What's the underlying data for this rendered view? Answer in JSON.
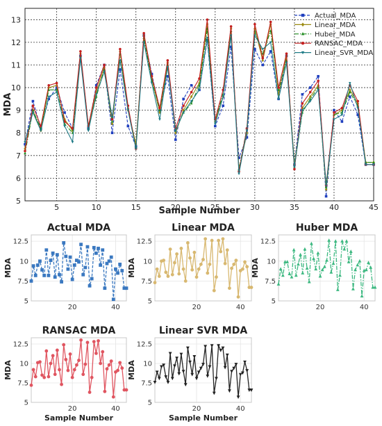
{
  "chart_data": [
    {
      "type": "line",
      "xlabel": "Sample Number",
      "ylabel": "MDA",
      "xlim": [
        1,
        45
      ],
      "ylim": [
        5,
        13.5
      ],
      "xticks": [
        5,
        10,
        15,
        20,
        25,
        30,
        35,
        40,
        45
      ],
      "yticks": [
        5,
        6,
        7,
        8,
        9,
        10,
        11,
        12,
        13
      ],
      "grid": "dashed",
      "legend_position": "top-right",
      "x": [
        1,
        2,
        3,
        4,
        5,
        6,
        7,
        8,
        9,
        10,
        11,
        12,
        13,
        14,
        15,
        16,
        17,
        18,
        19,
        20,
        21,
        22,
        23,
        24,
        25,
        26,
        27,
        28,
        29,
        30,
        31,
        32,
        33,
        34,
        35,
        36,
        37,
        38,
        39,
        40,
        41,
        42,
        43,
        44,
        45
      ],
      "series": [
        {
          "name": "Actual_MDA",
          "color": "#1f3fbf",
          "style": "dashed",
          "marker": "square",
          "values": [
            7.5,
            9.4,
            8.2,
            9.5,
            10.0,
            8.9,
            8.2,
            11.4,
            8.2,
            10.1,
            11.0,
            8.0,
            10.8,
            8.3,
            7.4,
            12.3,
            10.6,
            9.0,
            10.5,
            7.7,
            9.5,
            10.1,
            9.9,
            12.1,
            8.3,
            9.2,
            11.8,
            6.9,
            7.8,
            11.7,
            11.0,
            11.6,
            9.5,
            11.4,
            6.6,
            9.7,
            10.0,
            10.5,
            5.2,
            9.0,
            8.5,
            9.6,
            8.8,
            6.6,
            6.6
          ]
        },
        {
          "name": "Linear_MDA",
          "color": "#9a8a10",
          "style": "solid",
          "marker": "diamond",
          "values": [
            7.3,
            9.0,
            8.1,
            10.0,
            10.1,
            8.6,
            8.1,
            11.5,
            8.3,
            9.8,
            10.9,
            8.4,
            11.6,
            9.0,
            7.5,
            12.3,
            10.4,
            8.9,
            11.1,
            8.0,
            9.0,
            9.6,
            10.2,
            12.8,
            8.5,
            9.6,
            12.6,
            6.3,
            8.0,
            12.6,
            11.2,
            12.8,
            9.7,
            11.4,
            6.6,
            9.1,
            9.6,
            10.1,
            5.5,
            8.8,
            9.0,
            9.9,
            9.3,
            6.7,
            6.7
          ]
        },
        {
          "name": "Huber_MDA",
          "color": "#1d8a1d",
          "style": "dashdot",
          "marker": "triangle",
          "values": [
            7.1,
            9.0,
            8.2,
            9.9,
            9.9,
            8.4,
            8.0,
            11.4,
            8.2,
            9.6,
            10.8,
            8.5,
            11.5,
            9.1,
            7.4,
            12.2,
            10.3,
            9.0,
            11.0,
            8.1,
            8.9,
            9.3,
            10.1,
            12.6,
            8.6,
            9.7,
            12.5,
            6.4,
            8.2,
            12.5,
            11.5,
            12.5,
            9.9,
            11.2,
            6.5,
            8.9,
            9.5,
            10.0,
            5.6,
            8.8,
            8.9,
            9.8,
            9.2,
            6.7,
            6.7
          ]
        },
        {
          "name": "RANSAC_MDA",
          "color": "#c42020",
          "style": "solid",
          "marker": "circle",
          "values": [
            7.2,
            9.2,
            8.3,
            10.1,
            10.2,
            8.5,
            8.2,
            11.6,
            8.3,
            10.0,
            11.0,
            8.6,
            11.7,
            9.2,
            7.3,
            12.4,
            10.5,
            9.1,
            11.2,
            8.2,
            9.2,
            9.8,
            10.4,
            13.0,
            8.6,
            9.9,
            12.7,
            6.3,
            8.2,
            12.8,
            11.3,
            12.9,
            10.0,
            11.5,
            6.4,
            9.3,
            9.8,
            10.3,
            5.7,
            8.9,
            9.1,
            10.1,
            9.4,
            6.6,
            6.6
          ]
        },
        {
          "name": "Linear_SVR_MDA",
          "color": "#1d7a86",
          "style": "solid",
          "marker": "triangle-down",
          "values": [
            7.6,
            8.9,
            8.1,
            9.6,
            9.8,
            8.3,
            7.6,
            11.3,
            8.1,
            9.7,
            10.7,
            8.7,
            11.2,
            9.0,
            7.3,
            12.0,
            10.2,
            8.6,
            10.9,
            8.1,
            8.9,
            9.4,
            9.9,
            12.2,
            8.4,
            9.6,
            12.3,
            6.2,
            8.1,
            12.3,
            11.7,
            12.0,
            9.5,
            11.1,
            6.5,
            9.0,
            9.4,
            9.9,
            5.7,
            8.6,
            8.8,
            10.2,
            9.1,
            6.6,
            6.6
          ]
        }
      ]
    },
    {
      "type": "line",
      "title": "Actual MDA",
      "ylabel": "MDA",
      "xticks": [
        20,
        40
      ],
      "yticks": [
        5.0,
        7.5,
        10.0,
        12.5
      ],
      "ylim": [
        5,
        13.3
      ],
      "color": "#3a78c0",
      "style": "dashed",
      "marker": "square",
      "series_ref": "Actual_MDA"
    },
    {
      "type": "line",
      "title": "Linear MDA",
      "ylabel": "MDA",
      "xticks": [
        20,
        40
      ],
      "yticks": [
        5.0,
        7.5,
        10.0,
        12.5
      ],
      "ylim": [
        5,
        13.3
      ],
      "color": "#d8b870",
      "style": "solid",
      "marker": "circle",
      "series_ref": "Linear_MDA"
    },
    {
      "type": "line",
      "title": "Huber MDA",
      "ylabel": "MDA",
      "xticks": [
        20,
        40
      ],
      "yticks": [
        5.0,
        7.5,
        10.0,
        12.5
      ],
      "ylim": [
        5,
        13.3
      ],
      "color": "#3cb880",
      "style": "dashdot",
      "marker": "triangle",
      "series_ref": "Huber_MDA"
    },
    {
      "type": "line",
      "title": "RANSAC MDA",
      "ylabel": "MDA",
      "xlabel": "Sample Number",
      "xticks": [
        20,
        40
      ],
      "yticks": [
        5.0,
        7.5,
        10.0,
        12.5
      ],
      "ylim": [
        5,
        13.3
      ],
      "color": "#e05560",
      "style": "solid",
      "marker": "circle",
      "series_ref": "RANSAC_MDA"
    },
    {
      "type": "line",
      "title": "Linear SVR MDA",
      "ylabel": "MDA",
      "xlabel": "Sample Number",
      "xticks": [
        20,
        40
      ],
      "yticks": [
        5.0,
        7.5,
        10.0,
        12.5
      ],
      "ylim": [
        5,
        13.3
      ],
      "color": "#222222",
      "style": "solid",
      "marker": "triangle-down",
      "series_ref": "Linear_SVR_MDA"
    }
  ]
}
